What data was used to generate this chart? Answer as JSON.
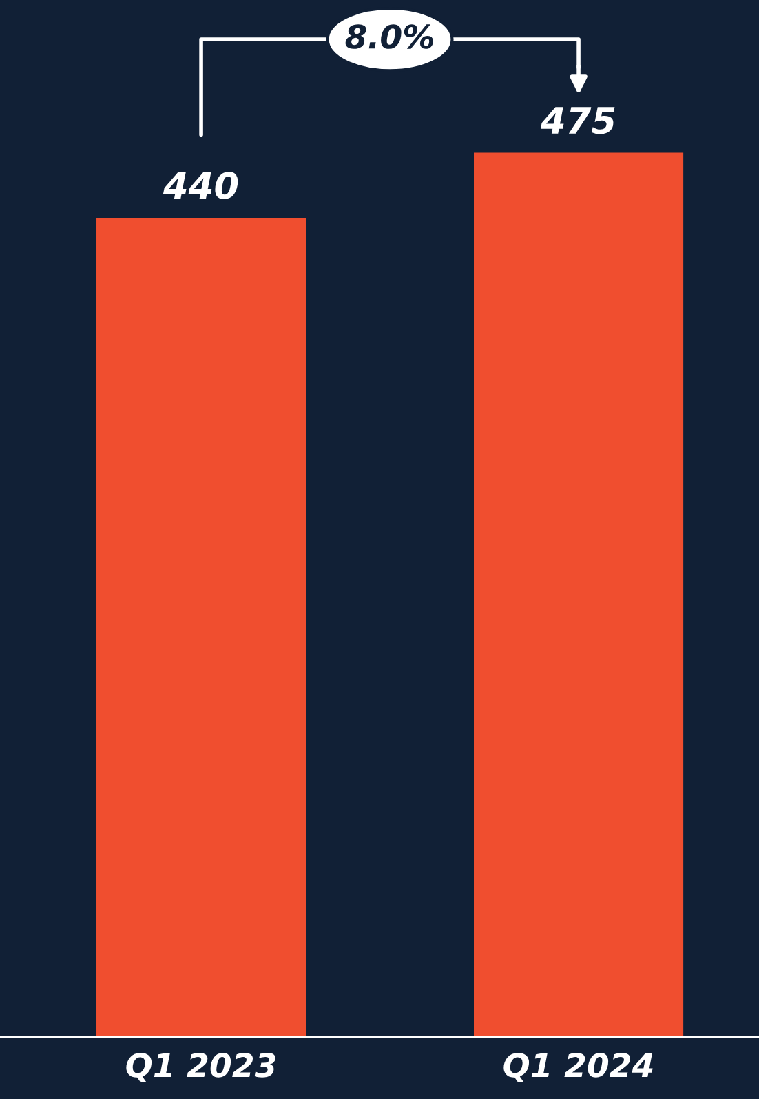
{
  "chart_data": {
    "type": "bar",
    "categories": [
      "Q1 2023",
      "Q1 2024"
    ],
    "values": [
      440,
      475
    ],
    "color": "#f04e2f",
    "data_labels": true,
    "ylim": [
      0,
      557
    ],
    "tick_labels": "x",
    "grid": false,
    "legend": false,
    "annotations": [
      "8.0%"
    ]
  }
}
